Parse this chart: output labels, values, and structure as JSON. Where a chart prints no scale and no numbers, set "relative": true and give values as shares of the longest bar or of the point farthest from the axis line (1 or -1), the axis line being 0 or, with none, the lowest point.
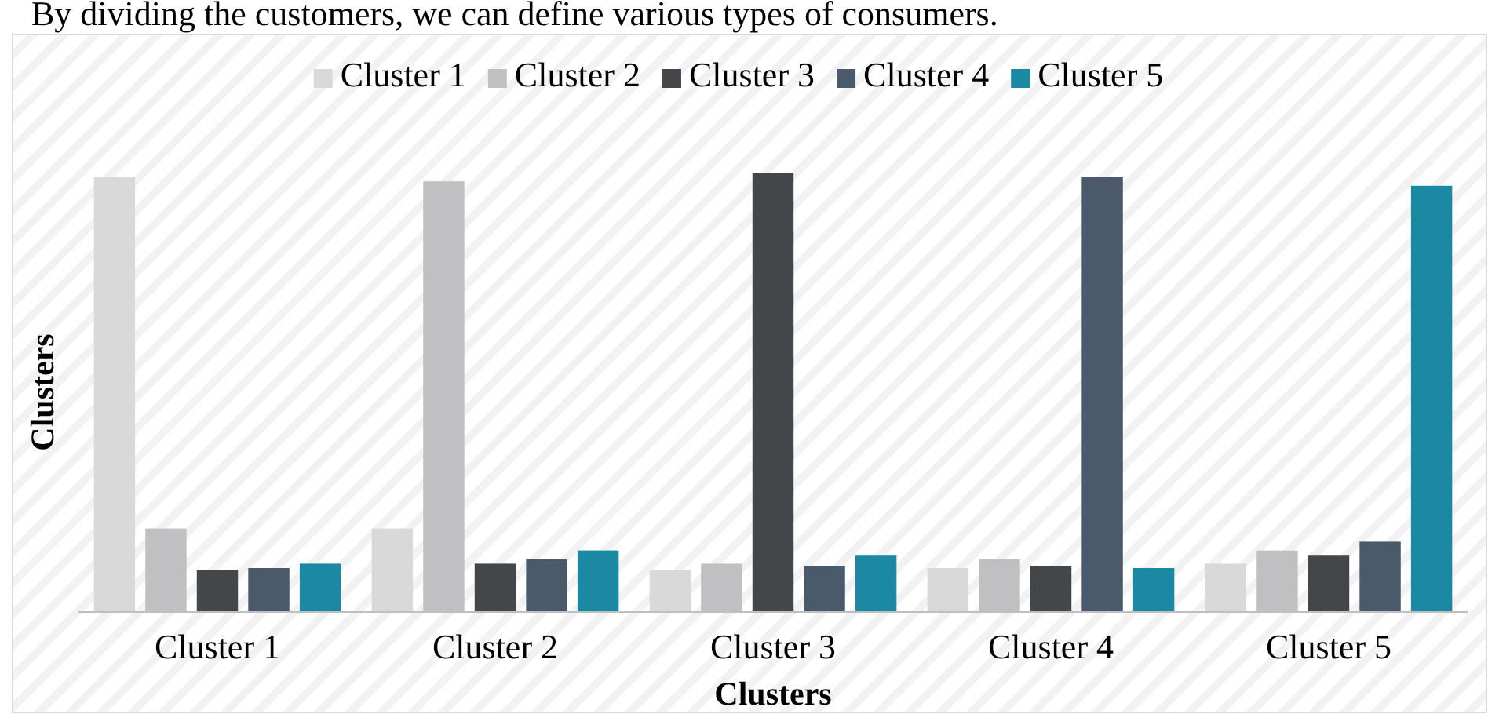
{
  "chart_data": {
    "type": "bar",
    "relative": true,
    "xlabel": "Clusters",
    "ylabel": "Clusters",
    "legend": "top",
    "annotations": [
      "By dividing the customers, we can define various types of consumers."
    ],
    "categories": [
      "Cluster 1",
      "Cluster 2",
      "Cluster 3",
      "Cluster 4",
      "Cluster 5"
    ],
    "series": [
      {
        "name": "Cluster 1",
        "color": "#d9d9d9",
        "values": [
          0.99,
          0.19,
          0.095,
          0.1,
          0.11
        ]
      },
      {
        "name": "Cluster 2",
        "color": "#c0bfc2",
        "values": [
          0.19,
          0.98,
          0.11,
          0.12,
          0.14
        ]
      },
      {
        "name": "Cluster 3",
        "color": "#44474a",
        "values": [
          0.095,
          0.11,
          1,
          0.105,
          0.13
        ]
      },
      {
        "name": "Cluster 4",
        "color": "#4a5a6a",
        "values": [
          0.1,
          0.12,
          0.105,
          0.99,
          0.16
        ]
      },
      {
        "name": "Cluster 5",
        "color": "#1b89a3",
        "values": [
          0.11,
          0.14,
          0.13,
          0.1,
          0.97
        ]
      }
    ]
  }
}
